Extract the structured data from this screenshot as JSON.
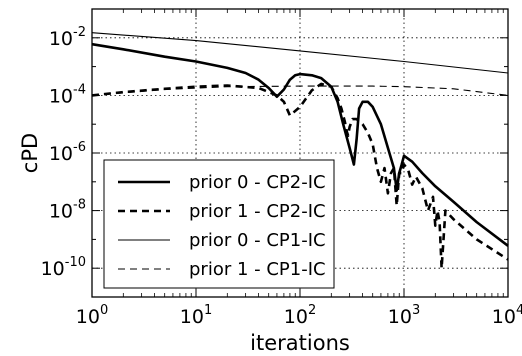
{
  "chart_data": {
    "type": "line",
    "xlabel": "iterations",
    "ylabel": "cPD",
    "xscale": "log",
    "yscale": "log",
    "xlim": [
      1,
      10000
    ],
    "ylim": [
      1e-11,
      0.1
    ],
    "grid": true,
    "legend_position": "lower-left",
    "x_ticks": [
      {
        "base": "10",
        "exp": "0"
      },
      {
        "base": "10",
        "exp": "1"
      },
      {
        "base": "10",
        "exp": "2"
      },
      {
        "base": "10",
        "exp": "3"
      },
      {
        "base": "10",
        "exp": "4"
      }
    ],
    "y_ticks": [
      {
        "value": 0.01,
        "base": "10",
        "exp": "-2"
      },
      {
        "value": 0.0001,
        "base": "10",
        "exp": "-4"
      },
      {
        "value": 1e-06,
        "base": "10",
        "exp": "-6"
      },
      {
        "value": 1e-08,
        "base": "10",
        "exp": "-8"
      },
      {
        "value": 1e-10,
        "base": "10",
        "exp": "-10"
      }
    ],
    "series": [
      {
        "name": "prior 0 - CP2-IC",
        "style": "solid-thick",
        "x": [
          1,
          2,
          5,
          10,
          20,
          30,
          40,
          50,
          60,
          70,
          80,
          90,
          100,
          130,
          160,
          200,
          230,
          260,
          300,
          330,
          350,
          370,
          400,
          450,
          500,
          600,
          700,
          800,
          850,
          900,
          950,
          1000,
          1200,
          1500,
          2000,
          3000,
          5000,
          10000
        ],
        "y": [
          0.006,
          0.004,
          0.0022,
          0.0015,
          0.0009,
          0.0006,
          0.00035,
          0.00018,
          9e-05,
          0.00016,
          0.00035,
          0.0005,
          0.00055,
          0.0005,
          0.0004,
          0.0002,
          6e-05,
          1e-05,
          1.5e-06,
          4e-07,
          3e-06,
          3.5e-05,
          6e-05,
          6e-05,
          4e-05,
          1e-05,
          1.5e-06,
          3e-07,
          5e-08,
          2e-07,
          4e-07,
          8e-07,
          5e-07,
          2e-07,
          7e-08,
          2e-08,
          4e-09,
          6e-10
        ]
      },
      {
        "name": "prior 1 - CP2-IC",
        "style": "dashed-thick",
        "x": [
          1,
          2,
          5,
          10,
          20,
          40,
          60,
          70,
          80,
          100,
          130,
          160,
          200,
          230,
          250,
          270,
          280,
          290,
          300,
          320,
          350,
          400,
          450,
          500,
          550,
          600,
          650,
          700,
          750,
          800,
          850,
          900,
          950,
          1000,
          1100,
          1200,
          1300,
          1500,
          1700,
          1900,
          2000,
          2100,
          2200,
          2300,
          2500,
          3000,
          5000,
          10000
        ],
        "y": [
          0.0001,
          0.00013,
          0.00017,
          0.0002,
          0.00022,
          0.00018,
          0.0001,
          6e-05,
          2e-05,
          4e-05,
          0.00015,
          0.00025,
          0.0002,
          8e-05,
          3.5e-05,
          1.2e-05,
          6e-06,
          4e-06,
          8e-06,
          1.5e-05,
          1.5e-05,
          1e-05,
          5e-06,
          2e-06,
          3e-07,
          1e-07,
          3e-07,
          4e-08,
          2e-07,
          3e-07,
          1.5e-08,
          2e-07,
          2e-07,
          4e-07,
          2.5e-07,
          8e-08,
          1.5e-07,
          6e-08,
          1e-08,
          3e-08,
          3e-09,
          1e-08,
          4e-09,
          1e-10,
          1e-08,
          5e-09,
          1e-09,
          2e-10
        ]
      },
      {
        "name": "prior 0 - CP1-IC",
        "style": "solid-thin",
        "x": [
          1,
          10,
          100,
          1000,
          10000
        ],
        "y": [
          0.015,
          0.008,
          0.0035,
          0.0015,
          0.0006
        ]
      },
      {
        "name": "prior 1 - CP1-IC",
        "style": "dashed-thin",
        "x": [
          1,
          5,
          20,
          100,
          500,
          1000,
          3000,
          10000
        ],
        "y": [
          0.0001,
          0.00016,
          0.0002,
          0.00021,
          0.00021,
          0.0002,
          0.00017,
          0.0001
        ]
      }
    ]
  }
}
